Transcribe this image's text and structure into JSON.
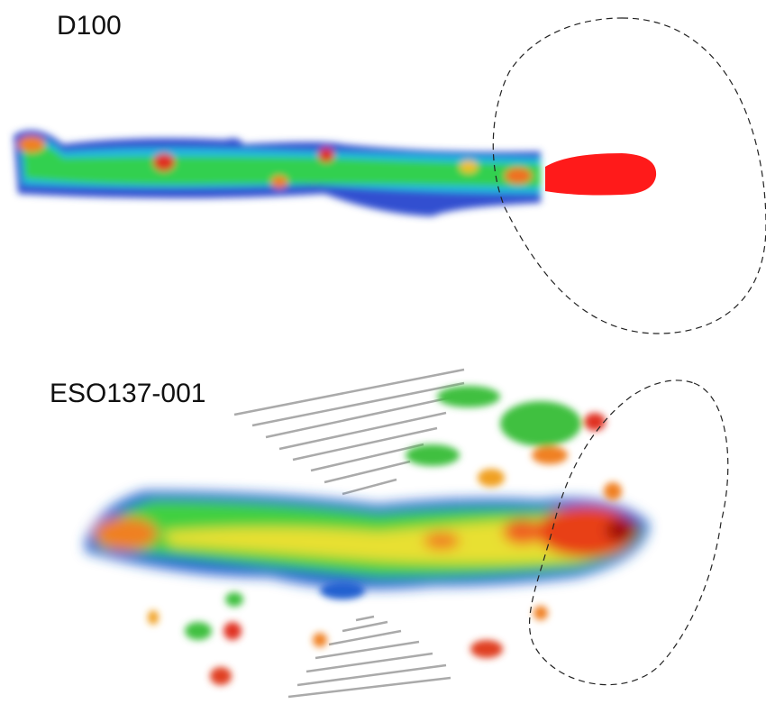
{
  "panels": [
    {
      "label": "D100"
    },
    {
      "label": "ESO137-001"
    }
  ]
}
